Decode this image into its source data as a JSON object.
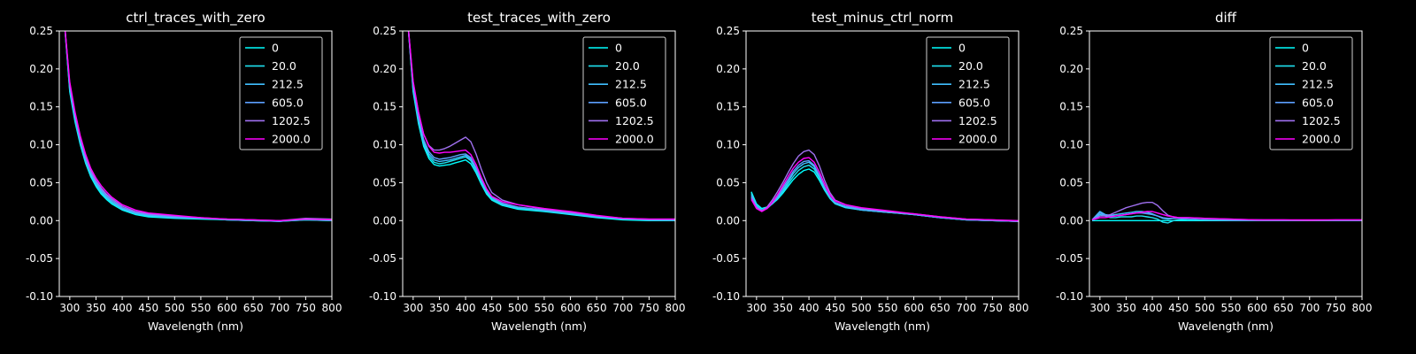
{
  "colors": {
    "background": "#000000",
    "axes": "#ffffff",
    "series": [
      "#00ffff",
      "#1ee1ef",
      "#40bfff",
      "#5c9fff",
      "#a070f0",
      "#ff00ff"
    ]
  },
  "chart_data": [
    {
      "type": "line",
      "title": "ctrl_traces_with_zero",
      "xlabel": "Wavelength (nm)",
      "ylabel": "",
      "xlim": [
        280,
        800
      ],
      "ylim": [
        -0.1,
        0.25
      ],
      "xticks": [
        300,
        350,
        400,
        450,
        500,
        550,
        600,
        650,
        700,
        750,
        800
      ],
      "yticks": [
        -0.1,
        -0.05,
        0.0,
        0.05,
        0.1,
        0.15,
        0.2,
        0.25
      ],
      "legend": "top-right",
      "x": [
        285,
        290,
        300,
        310,
        320,
        330,
        340,
        350,
        360,
        370,
        380,
        400,
        425,
        450,
        500,
        550,
        600,
        650,
        700,
        750,
        800
      ],
      "series": [
        {
          "name": "0",
          "values": [
            0.3,
            0.26,
            0.17,
            0.13,
            0.1,
            0.076,
            0.058,
            0.045,
            0.035,
            0.028,
            0.022,
            0.014,
            0.008,
            0.005,
            0.003,
            0.002,
            0.001,
            0.0,
            -0.001,
            0.001,
            0.0
          ]
        },
        {
          "name": "20.0",
          "values": [
            0.3,
            0.26,
            0.172,
            0.132,
            0.102,
            0.078,
            0.06,
            0.047,
            0.037,
            0.03,
            0.024,
            0.015,
            0.009,
            0.006,
            0.004,
            0.003,
            0.001,
            0.0,
            -0.001,
            0.001,
            0.0
          ]
        },
        {
          "name": "212.5",
          "values": [
            0.3,
            0.26,
            0.175,
            0.135,
            0.104,
            0.08,
            0.062,
            0.049,
            0.039,
            0.031,
            0.025,
            0.016,
            0.01,
            0.007,
            0.004,
            0.003,
            0.001,
            0.0,
            -0.001,
            0.002,
            0.001
          ]
        },
        {
          "name": "605.0",
          "values": [
            0.3,
            0.26,
            0.178,
            0.138,
            0.107,
            0.083,
            0.064,
            0.051,
            0.041,
            0.033,
            0.027,
            0.017,
            0.011,
            0.008,
            0.005,
            0.003,
            0.002,
            0.001,
            -0.001,
            0.002,
            0.001
          ]
        },
        {
          "name": "1202.5",
          "values": [
            0.3,
            0.26,
            0.18,
            0.14,
            0.109,
            0.085,
            0.066,
            0.053,
            0.043,
            0.035,
            0.029,
            0.019,
            0.012,
            0.009,
            0.006,
            0.004,
            0.002,
            0.001,
            0.0,
            0.003,
            0.002
          ]
        },
        {
          "name": "2000.0",
          "values": [
            0.3,
            0.26,
            0.183,
            0.143,
            0.112,
            0.088,
            0.069,
            0.056,
            0.046,
            0.038,
            0.031,
            0.021,
            0.014,
            0.01,
            0.007,
            0.004,
            0.002,
            0.001,
            0.0,
            0.002,
            0.001
          ]
        }
      ]
    },
    {
      "type": "line",
      "title": "test_traces_with_zero",
      "xlabel": "Wavelength (nm)",
      "ylabel": "",
      "xlim": [
        280,
        800
      ],
      "ylim": [
        -0.1,
        0.25
      ],
      "xticks": [
        300,
        350,
        400,
        450,
        500,
        550,
        600,
        650,
        700,
        750,
        800
      ],
      "yticks": [
        -0.1,
        -0.05,
        0.0,
        0.05,
        0.1,
        0.15,
        0.2,
        0.25
      ],
      "legend": "top-right",
      "x": [
        285,
        290,
        300,
        310,
        320,
        330,
        340,
        350,
        360,
        370,
        380,
        390,
        400,
        410,
        420,
        430,
        440,
        450,
        470,
        500,
        550,
        600,
        650,
        700,
        750,
        800
      ],
      "series": [
        {
          "name": "0",
          "values": [
            0.3,
            0.26,
            0.17,
            0.128,
            0.098,
            0.082,
            0.074,
            0.072,
            0.073,
            0.074,
            0.076,
            0.078,
            0.08,
            0.075,
            0.063,
            0.048,
            0.035,
            0.027,
            0.02,
            0.015,
            0.012,
            0.008,
            0.004,
            0.001,
            0.0,
            0.0
          ]
        },
        {
          "name": "20.0",
          "values": [
            0.3,
            0.26,
            0.172,
            0.131,
            0.101,
            0.085,
            0.077,
            0.075,
            0.076,
            0.078,
            0.08,
            0.082,
            0.084,
            0.079,
            0.066,
            0.05,
            0.037,
            0.028,
            0.021,
            0.016,
            0.013,
            0.009,
            0.005,
            0.002,
            0.001,
            0.0
          ]
        },
        {
          "name": "212.5",
          "values": [
            0.3,
            0.26,
            0.175,
            0.134,
            0.104,
            0.088,
            0.08,
            0.078,
            0.079,
            0.08,
            0.082,
            0.084,
            0.086,
            0.081,
            0.068,
            0.052,
            0.039,
            0.03,
            0.022,
            0.017,
            0.013,
            0.009,
            0.005,
            0.002,
            0.001,
            0.001
          ]
        },
        {
          "name": "605.0",
          "values": [
            0.3,
            0.26,
            0.178,
            0.137,
            0.107,
            0.091,
            0.083,
            0.081,
            0.082,
            0.083,
            0.085,
            0.087,
            0.088,
            0.083,
            0.07,
            0.054,
            0.04,
            0.031,
            0.023,
            0.018,
            0.014,
            0.01,
            0.006,
            0.003,
            0.001,
            0.001
          ]
        },
        {
          "name": "1202.5",
          "values": [
            0.3,
            0.26,
            0.182,
            0.143,
            0.114,
            0.099,
            0.093,
            0.093,
            0.095,
            0.098,
            0.102,
            0.106,
            0.11,
            0.104,
            0.088,
            0.068,
            0.05,
            0.037,
            0.027,
            0.021,
            0.015,
            0.011,
            0.006,
            0.003,
            0.002,
            0.002
          ]
        },
        {
          "name": "2000.0",
          "values": [
            0.3,
            0.26,
            0.184,
            0.144,
            0.114,
            0.098,
            0.09,
            0.089,
            0.09,
            0.09,
            0.091,
            0.092,
            0.093,
            0.087,
            0.074,
            0.057,
            0.042,
            0.032,
            0.025,
            0.021,
            0.016,
            0.012,
            0.007,
            0.003,
            0.002,
            0.002
          ]
        }
      ]
    },
    {
      "type": "line",
      "title": "test_minus_ctrl_norm",
      "xlabel": "Wavelength (nm)",
      "ylabel": "",
      "xlim": [
        280,
        800
      ],
      "ylim": [
        -0.1,
        0.25
      ],
      "xticks": [
        300,
        350,
        400,
        450,
        500,
        550,
        600,
        650,
        700,
        750,
        800
      ],
      "yticks": [
        -0.1,
        -0.05,
        0.0,
        0.05,
        0.1,
        0.15,
        0.2,
        0.25
      ],
      "legend": "top-right",
      "x": [
        290,
        300,
        310,
        320,
        330,
        340,
        350,
        360,
        370,
        380,
        390,
        400,
        410,
        420,
        430,
        440,
        450,
        470,
        500,
        550,
        600,
        650,
        700,
        750,
        800
      ],
      "series": [
        {
          "name": "0",
          "values": [
            0.038,
            0.022,
            0.016,
            0.018,
            0.022,
            0.028,
            0.036,
            0.045,
            0.054,
            0.061,
            0.066,
            0.068,
            0.064,
            0.053,
            0.04,
            0.029,
            0.022,
            0.017,
            0.014,
            0.011,
            0.008,
            0.004,
            0.001,
            0.0,
            -0.001
          ]
        },
        {
          "name": "20.0",
          "values": [
            0.036,
            0.02,
            0.014,
            0.017,
            0.022,
            0.029,
            0.038,
            0.048,
            0.058,
            0.066,
            0.071,
            0.073,
            0.068,
            0.056,
            0.042,
            0.03,
            0.023,
            0.018,
            0.014,
            0.011,
            0.008,
            0.004,
            0.001,
            0.0,
            -0.001
          ]
        },
        {
          "name": "212.5",
          "values": [
            0.034,
            0.019,
            0.013,
            0.016,
            0.022,
            0.03,
            0.04,
            0.051,
            0.062,
            0.07,
            0.075,
            0.077,
            0.071,
            0.058,
            0.043,
            0.031,
            0.023,
            0.018,
            0.014,
            0.011,
            0.008,
            0.004,
            0.001,
            0.0,
            -0.001
          ]
        },
        {
          "name": "605.0",
          "values": [
            0.032,
            0.018,
            0.013,
            0.016,
            0.023,
            0.032,
            0.043,
            0.054,
            0.065,
            0.073,
            0.078,
            0.079,
            0.073,
            0.06,
            0.044,
            0.031,
            0.024,
            0.019,
            0.015,
            0.012,
            0.008,
            0.004,
            0.001,
            0.0,
            -0.001
          ]
        },
        {
          "name": "1202.5",
          "values": [
            0.03,
            0.017,
            0.013,
            0.018,
            0.027,
            0.038,
            0.05,
            0.063,
            0.075,
            0.085,
            0.091,
            0.093,
            0.087,
            0.072,
            0.053,
            0.037,
            0.027,
            0.021,
            0.016,
            0.012,
            0.009,
            0.005,
            0.002,
            0.001,
            -0.001
          ]
        },
        {
          "name": "2000.0",
          "values": [
            0.028,
            0.016,
            0.012,
            0.016,
            0.024,
            0.034,
            0.046,
            0.058,
            0.069,
            0.077,
            0.082,
            0.083,
            0.077,
            0.064,
            0.048,
            0.034,
            0.026,
            0.021,
            0.017,
            0.013,
            0.009,
            0.005,
            0.002,
            0.001,
            0.0
          ]
        }
      ]
    },
    {
      "type": "line",
      "title": "diff",
      "xlabel": "Wavelength (nm)",
      "ylabel": "",
      "xlim": [
        280,
        800
      ],
      "ylim": [
        -0.1,
        0.25
      ],
      "xticks": [
        300,
        350,
        400,
        450,
        500,
        550,
        600,
        650,
        700,
        750,
        800
      ],
      "yticks": [
        -0.1,
        -0.05,
        0.0,
        0.05,
        0.1,
        0.15,
        0.2,
        0.25
      ],
      "legend": "top-right",
      "x": [
        285,
        300,
        310,
        320,
        330,
        340,
        350,
        360,
        370,
        380,
        390,
        400,
        410,
        420,
        430,
        440,
        450,
        470,
        500,
        550,
        600,
        650,
        700,
        750,
        800
      ],
      "series": [
        {
          "name": "0",
          "values": [
            0.0,
            0.0,
            0.0,
            0.0,
            0.0,
            0.0,
            0.0,
            0.0,
            0.0,
            0.0,
            0.0,
            0.0,
            0.0,
            0.0,
            0.0,
            0.0,
            0.0,
            0.0,
            0.0,
            0.0,
            0.0,
            0.0,
            0.0,
            0.0,
            0.0
          ]
        },
        {
          "name": "20.0",
          "values": [
            0.001,
            0.008,
            0.006,
            0.004,
            0.004,
            0.005,
            0.005,
            0.005,
            0.006,
            0.006,
            0.005,
            0.004,
            0.002,
            -0.002,
            -0.003,
            0.0,
            0.001,
            0.002,
            0.001,
            0.0,
            0.0,
            0.0,
            0.0,
            0.0,
            0.0
          ]
        },
        {
          "name": "212.5",
          "values": [
            0.001,
            0.012,
            0.008,
            0.007,
            0.008,
            0.009,
            0.01,
            0.011,
            0.012,
            0.012,
            0.011,
            0.009,
            0.006,
            0.003,
            0.002,
            0.003,
            0.003,
            0.002,
            0.001,
            0.0,
            0.001,
            0.0,
            0.0,
            0.0,
            0.0
          ]
        },
        {
          "name": "605.0",
          "values": [
            0.001,
            0.01,
            0.007,
            0.006,
            0.006,
            0.007,
            0.008,
            0.009,
            0.01,
            0.01,
            0.009,
            0.008,
            0.006,
            0.004,
            0.003,
            0.003,
            0.003,
            0.002,
            0.001,
            0.001,
            0.0,
            0.0,
            0.0,
            0.0,
            0.0
          ]
        },
        {
          "name": "1202.5",
          "values": [
            0.001,
            0.006,
            0.006,
            0.008,
            0.011,
            0.014,
            0.017,
            0.019,
            0.021,
            0.023,
            0.024,
            0.024,
            0.02,
            0.013,
            0.007,
            0.005,
            0.004,
            0.004,
            0.003,
            0.002,
            0.001,
            0.001,
            0.0,
            0.001,
            0.001
          ]
        },
        {
          "name": "2000.0",
          "values": [
            0.001,
            0.004,
            0.004,
            0.005,
            0.006,
            0.007,
            0.008,
            0.009,
            0.01,
            0.011,
            0.012,
            0.012,
            0.01,
            0.008,
            0.006,
            0.005,
            0.004,
            0.004,
            0.003,
            0.002,
            0.001,
            0.001,
            0.001,
            0.001,
            0.001
          ]
        }
      ]
    }
  ]
}
